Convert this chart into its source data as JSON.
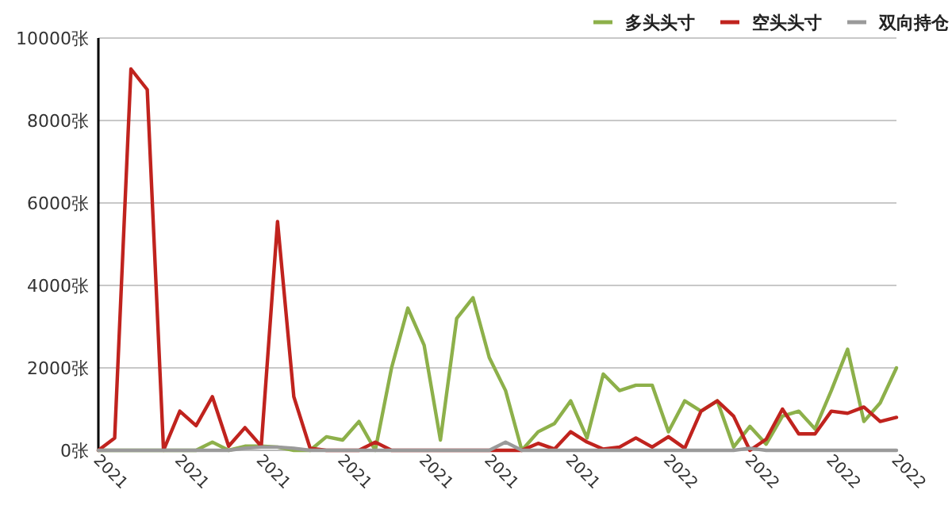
{
  "chart_data": {
    "type": "line",
    "categories": [
      "2021",
      null,
      null,
      null,
      null,
      "2021",
      null,
      null,
      null,
      null,
      "2021",
      null,
      null,
      null,
      null,
      "2021",
      null,
      null,
      null,
      null,
      "2021",
      null,
      null,
      null,
      "2021",
      null,
      null,
      null,
      null,
      "2021",
      null,
      null,
      null,
      null,
      null,
      "2022",
      null,
      null,
      null,
      null,
      "2022",
      null,
      null,
      null,
      null,
      "2022",
      null,
      null,
      null,
      "2022"
    ],
    "series": [
      {
        "name": "多头头寸",
        "color": "#8db04a",
        "values": [
          0,
          0,
          0,
          0,
          0,
          0,
          0,
          200,
          0,
          100,
          100,
          80,
          0,
          0,
          330,
          250,
          700,
          0,
          2000,
          3450,
          2550,
          250,
          3200,
          3700,
          2250,
          1450,
          0,
          450,
          650,
          1200,
          300,
          1850,
          1450,
          1580,
          1580,
          450,
          1200,
          950,
          1200,
          80,
          580,
          150,
          830,
          950,
          520,
          1450,
          2450,
          700,
          1150,
          2000
        ]
      },
      {
        "name": "空头头寸",
        "color": "#c0231e",
        "values": [
          0,
          300,
          9250,
          8750,
          0,
          950,
          600,
          1300,
          100,
          550,
          100,
          5550,
          1300,
          50,
          0,
          0,
          0,
          200,
          0,
          0,
          0,
          0,
          0,
          0,
          0,
          0,
          0,
          170,
          30,
          450,
          200,
          30,
          80,
          300,
          80,
          330,
          50,
          950,
          1200,
          830,
          0,
          270,
          1000,
          400,
          400,
          950,
          900,
          1050,
          700,
          800
        ]
      },
      {
        "name": "双向持仓",
        "color": "#9a9a9a",
        "values": [
          0,
          0,
          0,
          0,
          0,
          0,
          0,
          0,
          0,
          50,
          80,
          80,
          50,
          0,
          0,
          0,
          0,
          0,
          0,
          0,
          0,
          0,
          0,
          0,
          0,
          200,
          0,
          0,
          0,
          0,
          0,
          0,
          0,
          0,
          0,
          0,
          0,
          0,
          0,
          0,
          50,
          0,
          0,
          0,
          0,
          0,
          0,
          0,
          0,
          0
        ]
      }
    ],
    "ylim": [
      0,
      10000
    ],
    "yticks": [
      {
        "value": 0,
        "label": "0张"
      },
      {
        "value": 2000,
        "label": "2000张"
      },
      {
        "value": 4000,
        "label": "4000张"
      },
      {
        "value": 6000,
        "label": "6000张"
      },
      {
        "value": 8000,
        "label": "8000张"
      },
      {
        "value": 10000,
        "label": "10000张"
      }
    ],
    "grid": "y",
    "legend": "top right",
    "marker": "none",
    "line_style": "solid"
  }
}
